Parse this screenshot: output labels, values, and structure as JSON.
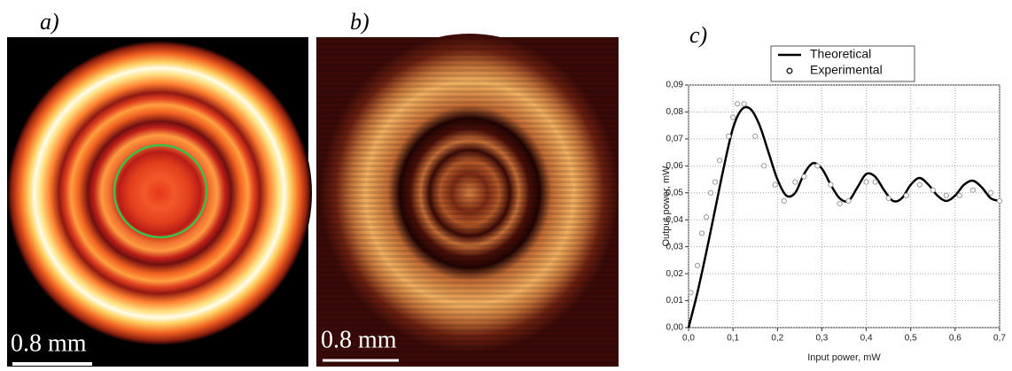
{
  "panels": [
    {
      "label": "a)",
      "scale": "0.8 mm"
    },
    {
      "label": "b)",
      "scale": "0.8 mm"
    },
    {
      "label": "c)"
    }
  ],
  "chart_data": {
    "type": "line",
    "xlabel": "Input power, mW",
    "ylabel": "Output power, mW",
    "xlim": [
      0,
      0.7
    ],
    "ylim": [
      0,
      0.09
    ],
    "xticks": [
      {
        "value": 0,
        "label": "0,0"
      },
      {
        "value": 0.1,
        "label": "0,1"
      },
      {
        "value": 0.2,
        "label": "0,2"
      },
      {
        "value": 0.3,
        "label": "0,3"
      },
      {
        "value": 0.4,
        "label": "0,4"
      },
      {
        "value": 0.5,
        "label": "0,5"
      },
      {
        "value": 0.6,
        "label": "0,6"
      },
      {
        "value": 0.7,
        "label": "0,7"
      }
    ],
    "yticks": [
      {
        "value": 0,
        "label": "0,00"
      },
      {
        "value": 0.01,
        "label": "0,01"
      },
      {
        "value": 0.02,
        "label": "0,02"
      },
      {
        "value": 0.03,
        "label": "0,03"
      },
      {
        "value": 0.04,
        "label": "0,04"
      },
      {
        "value": 0.05,
        "label": "0,05"
      },
      {
        "value": 0.06,
        "label": "0,06"
      },
      {
        "value": 0.07,
        "label": "0,07"
      },
      {
        "value": 0.08,
        "label": "0,08"
      },
      {
        "value": 0.09,
        "label": "0,09"
      }
    ],
    "grid": true,
    "legend": "top",
    "series": [
      {
        "name": "Theoretical",
        "color": "#000000",
        "style": "line",
        "x": [
          0,
          0.02,
          0.04,
          0.06,
          0.08,
          0.1,
          0.12,
          0.14,
          0.16,
          0.18,
          0.2,
          0.22,
          0.24,
          0.26,
          0.28,
          0.3,
          0.32,
          0.34,
          0.36,
          0.38,
          0.4,
          0.42,
          0.44,
          0.46,
          0.48,
          0.5,
          0.52,
          0.54,
          0.56,
          0.58,
          0.6,
          0.62,
          0.64,
          0.66,
          0.68,
          0.7
        ],
        "values": [
          0,
          0.013,
          0.028,
          0.044,
          0.06,
          0.074,
          0.081,
          0.081,
          0.075,
          0.065,
          0.055,
          0.049,
          0.05,
          0.057,
          0.061,
          0.059,
          0.053,
          0.048,
          0.047,
          0.052,
          0.057,
          0.056,
          0.051,
          0.047,
          0.048,
          0.053,
          0.0555,
          0.053,
          0.049,
          0.047,
          0.049,
          0.053,
          0.0545,
          0.052,
          0.048,
          0.047
        ]
      },
      {
        "name": "Experimental",
        "color": "#999999",
        "style": "markers",
        "x": [
          0.005,
          0.02,
          0.03,
          0.04,
          0.05,
          0.06,
          0.07,
          0.09,
          0.1,
          0.11,
          0.125,
          0.15,
          0.17,
          0.195,
          0.215,
          0.24,
          0.26,
          0.29,
          0.32,
          0.34,
          0.36,
          0.4,
          0.42,
          0.45,
          0.49,
          0.52,
          0.55,
          0.58,
          0.61,
          0.64,
          0.68,
          0.7
        ],
        "values": [
          0.013,
          0.023,
          0.035,
          0.041,
          0.05,
          0.054,
          0.062,
          0.071,
          0.078,
          0.083,
          0.083,
          0.071,
          0.06,
          0.053,
          0.047,
          0.054,
          0.056,
          0.06,
          0.053,
          0.046,
          0.047,
          0.054,
          0.054,
          0.048,
          0.049,
          0.053,
          0.051,
          0.049,
          0.049,
          0.051,
          0.05,
          0.047
        ]
      }
    ]
  }
}
